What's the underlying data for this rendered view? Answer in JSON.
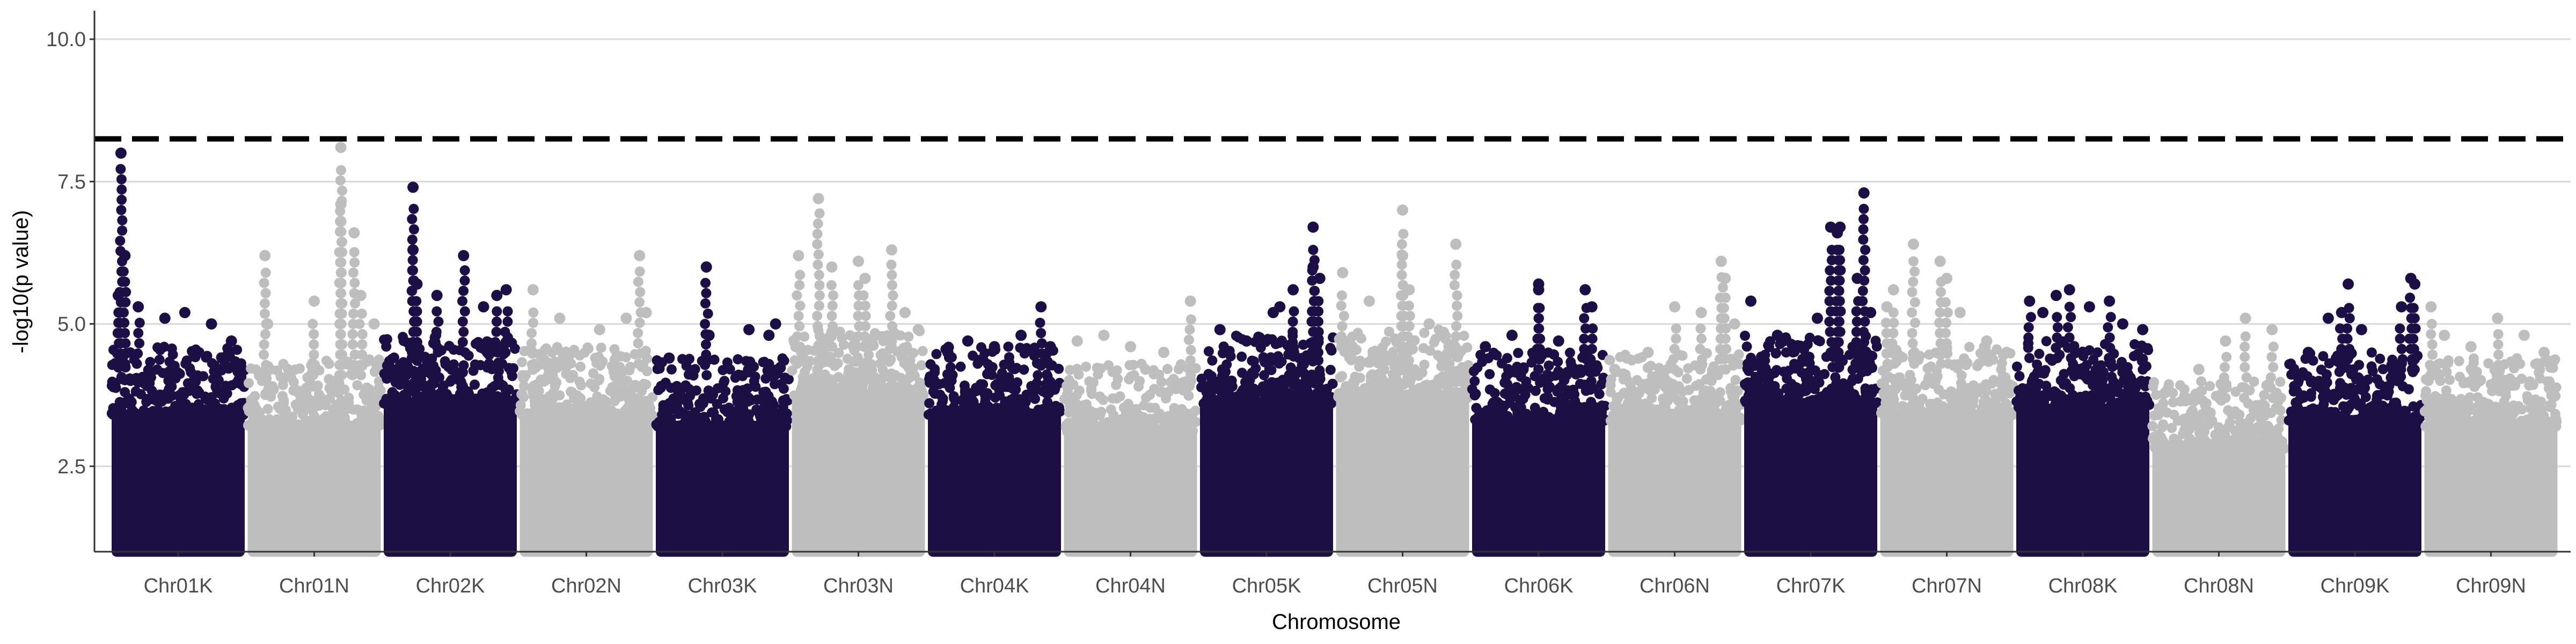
{
  "chart_data": {
    "type": "scatter",
    "subtype": "manhattan",
    "title": "",
    "xlabel": "Chromosome",
    "ylabel": "-log10(p value)",
    "ylim": [
      1.0,
      10.5
    ],
    "y_ticks": [
      "2.5",
      "5.0",
      "7.5",
      "10.0"
    ],
    "y_tick_values": [
      2.5,
      5.0,
      7.5,
      10.0
    ],
    "grid": "horizontal major gridlines",
    "legend": "none",
    "threshold": 8.25,
    "threshold_style": "dashed black line",
    "point_colors": {
      "odd_chromosome": "#1c0f45",
      "even_chromosome": "#bebebe"
    },
    "colors": {
      "gridline": "#d9d9d9",
      "axis": "#333333",
      "tick_text": "#4d4d4d",
      "threshold": "#000000"
    },
    "categories": [
      "Chr01K",
      "Chr01N",
      "Chr02K",
      "Chr02N",
      "Chr03K",
      "Chr03N",
      "Chr04K",
      "Chr04N",
      "Chr05K",
      "Chr05N",
      "Chr06K",
      "Chr06N",
      "Chr07K",
      "Chr07N",
      "Chr08K",
      "Chr08N",
      "Chr09K",
      "Chr09N"
    ],
    "series": [
      {
        "chromosome": "Chr01K",
        "color_group": "odd_chromosome",
        "dense_top": 4.0,
        "top_hits": [
          [
            0.07,
            8.0
          ],
          [
            0.1,
            6.2
          ],
          [
            0.05,
            5.5
          ],
          [
            0.2,
            5.3
          ],
          [
            0.4,
            5.1
          ],
          [
            0.55,
            5.2
          ],
          [
            0.75,
            5.0
          ],
          [
            0.9,
            4.7
          ]
        ]
      },
      {
        "chromosome": "Chr01N",
        "color_group": "even_chromosome",
        "dense_top": 3.8,
        "top_hits": [
          [
            0.13,
            6.2
          ],
          [
            0.15,
            5.0
          ],
          [
            0.5,
            5.4
          ],
          [
            0.7,
            8.1
          ],
          [
            0.7,
            7.1
          ],
          [
            0.7,
            6.8
          ],
          [
            0.8,
            6.6
          ],
          [
            0.85,
            5.5
          ],
          [
            0.95,
            5.0
          ]
        ]
      },
      {
        "chromosome": "Chr02K",
        "color_group": "odd_chromosome",
        "dense_top": 4.2,
        "top_hits": [
          [
            0.22,
            7.4
          ],
          [
            0.22,
            6.3
          ],
          [
            0.25,
            5.7
          ],
          [
            0.4,
            5.5
          ],
          [
            0.6,
            6.2
          ],
          [
            0.75,
            5.3
          ],
          [
            0.85,
            5.5
          ],
          [
            0.92,
            5.6
          ]
        ]
      },
      {
        "chromosome": "Chr02N",
        "color_group": "even_chromosome",
        "dense_top": 4.0,
        "top_hits": [
          [
            0.1,
            5.6
          ],
          [
            0.3,
            5.1
          ],
          [
            0.6,
            4.9
          ],
          [
            0.8,
            5.1
          ],
          [
            0.9,
            6.2
          ],
          [
            0.95,
            5.2
          ]
        ]
      },
      {
        "chromosome": "Chr03K",
        "color_group": "odd_chromosome",
        "dense_top": 3.8,
        "top_hits": [
          [
            0.1,
            4.4
          ],
          [
            0.38,
            6.0
          ],
          [
            0.4,
            4.8
          ],
          [
            0.7,
            4.9
          ],
          [
            0.85,
            4.8
          ],
          [
            0.9,
            5.0
          ]
        ]
      },
      {
        "chromosome": "Chr03N",
        "color_group": "even_chromosome",
        "dense_top": 4.3,
        "top_hits": [
          [
            0.05,
            6.2
          ],
          [
            0.2,
            7.2
          ],
          [
            0.3,
            6.0
          ],
          [
            0.5,
            6.1
          ],
          [
            0.55,
            5.8
          ],
          [
            0.75,
            6.3
          ],
          [
            0.85,
            5.2
          ],
          [
            0.95,
            4.9
          ]
        ]
      },
      {
        "chromosome": "Chr04K",
        "color_group": "odd_chromosome",
        "dense_top": 4.0,
        "top_hits": [
          [
            0.15,
            4.5
          ],
          [
            0.3,
            4.7
          ],
          [
            0.5,
            4.6
          ],
          [
            0.7,
            4.8
          ],
          [
            0.85,
            5.3
          ],
          [
            0.92,
            4.6
          ]
        ]
      },
      {
        "chromosome": "Chr04N",
        "color_group": "even_chromosome",
        "dense_top": 3.7,
        "top_hits": [
          [
            0.1,
            4.7
          ],
          [
            0.3,
            4.8
          ],
          [
            0.5,
            4.6
          ],
          [
            0.75,
            4.5
          ],
          [
            0.95,
            5.4
          ]
        ]
      },
      {
        "chromosome": "Chr05K",
        "color_group": "odd_chromosome",
        "dense_top": 4.2,
        "top_hits": [
          [
            0.15,
            4.9
          ],
          [
            0.35,
            4.7
          ],
          [
            0.55,
            5.2
          ],
          [
            0.6,
            5.3
          ],
          [
            0.7,
            5.6
          ],
          [
            0.85,
            6.7
          ],
          [
            0.85,
            6.0
          ],
          [
            0.9,
            5.8
          ]
        ]
      },
      {
        "chromosome": "Chr05N",
        "color_group": "even_chromosome",
        "dense_top": 4.3,
        "top_hits": [
          [
            0.05,
            5.9
          ],
          [
            0.25,
            5.4
          ],
          [
            0.5,
            7.0
          ],
          [
            0.5,
            6.2
          ],
          [
            0.55,
            5.6
          ],
          [
            0.7,
            5.0
          ],
          [
            0.9,
            6.4
          ]
        ]
      },
      {
        "chromosome": "Chr06K",
        "color_group": "odd_chromosome",
        "dense_top": 3.9,
        "top_hits": [
          [
            0.1,
            4.6
          ],
          [
            0.3,
            4.8
          ],
          [
            0.5,
            5.6
          ],
          [
            0.5,
            5.7
          ],
          [
            0.65,
            4.7
          ],
          [
            0.85,
            5.6
          ],
          [
            0.9,
            5.3
          ]
        ]
      },
      {
        "chromosome": "Chr06N",
        "color_group": "even_chromosome",
        "dense_top": 3.9,
        "top_hits": [
          [
            0.05,
            4.2
          ],
          [
            0.3,
            4.5
          ],
          [
            0.5,
            5.3
          ],
          [
            0.7,
            5.2
          ],
          [
            0.85,
            6.1
          ],
          [
            0.88,
            5.8
          ],
          [
            0.95,
            5.0
          ]
        ]
      },
      {
        "chromosome": "Chr07K",
        "color_group": "odd_chromosome",
        "dense_top": 4.2,
        "top_hits": [
          [
            0.05,
            5.4
          ],
          [
            0.25,
            4.8
          ],
          [
            0.55,
            5.1
          ],
          [
            0.65,
            6.7
          ],
          [
            0.7,
            6.6
          ],
          [
            0.72,
            6.7
          ],
          [
            0.85,
            5.8
          ],
          [
            0.9,
            7.3
          ],
          [
            0.95,
            5.2
          ]
        ]
      },
      {
        "chromosome": "Chr07N",
        "color_group": "even_chromosome",
        "dense_top": 4.0,
        "top_hits": [
          [
            0.05,
            5.3
          ],
          [
            0.1,
            5.6
          ],
          [
            0.25,
            6.4
          ],
          [
            0.45,
            6.1
          ],
          [
            0.5,
            5.8
          ],
          [
            0.6,
            5.2
          ],
          [
            0.8,
            4.7
          ],
          [
            0.95,
            4.5
          ]
        ]
      },
      {
        "chromosome": "Chr08K",
        "color_group": "odd_chromosome",
        "dense_top": 4.1,
        "top_hits": [
          [
            0.1,
            5.4
          ],
          [
            0.2,
            5.2
          ],
          [
            0.3,
            5.5
          ],
          [
            0.4,
            5.6
          ],
          [
            0.55,
            5.3
          ],
          [
            0.7,
            5.4
          ],
          [
            0.8,
            5.0
          ],
          [
            0.95,
            4.9
          ]
        ]
      },
      {
        "chromosome": "Chr08N",
        "color_group": "even_chromosome",
        "dense_top": 3.4,
        "top_hits": [
          [
            0.1,
            3.8
          ],
          [
            0.35,
            4.2
          ],
          [
            0.55,
            4.7
          ],
          [
            0.7,
            5.1
          ],
          [
            0.9,
            4.9
          ]
        ]
      },
      {
        "chromosome": "Chr09K",
        "color_group": "odd_chromosome",
        "dense_top": 3.9,
        "top_hits": [
          [
            0.15,
            4.5
          ],
          [
            0.3,
            5.1
          ],
          [
            0.4,
            5.2
          ],
          [
            0.45,
            5.7
          ],
          [
            0.55,
            4.9
          ],
          [
            0.85,
            5.3
          ],
          [
            0.92,
            5.8
          ],
          [
            0.95,
            5.7
          ]
        ]
      },
      {
        "chromosome": "Chr09N",
        "color_group": "even_chromosome",
        "dense_top": 3.8,
        "top_hits": [
          [
            0.05,
            5.3
          ],
          [
            0.15,
            4.8
          ],
          [
            0.35,
            4.6
          ],
          [
            0.55,
            5.1
          ],
          [
            0.75,
            4.8
          ],
          [
            0.9,
            4.5
          ]
        ]
      }
    ]
  }
}
